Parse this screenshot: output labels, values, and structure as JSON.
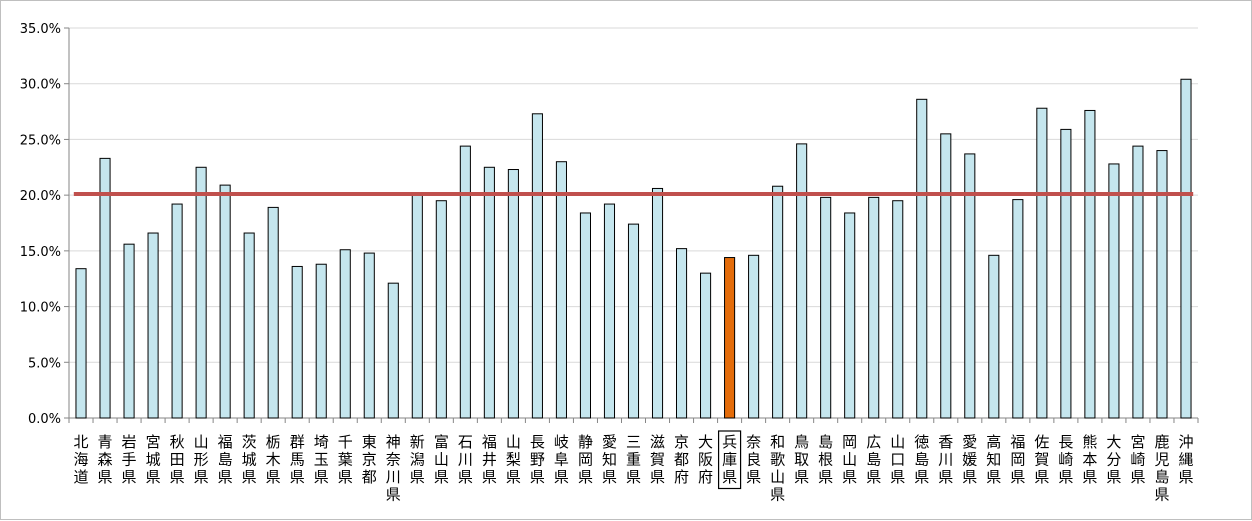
{
  "chart_data": {
    "type": "bar",
    "title": "",
    "xlabel": "",
    "ylabel": "",
    "ylim": [
      0,
      35
    ],
    "yticks": [
      "0.0%",
      "5.0%",
      "10.0%",
      "15.0%",
      "20.0%",
      "25.0%",
      "30.0%",
      "35.0%"
    ],
    "grid": true,
    "categories": [
      "北海道",
      "青森県",
      "岩手県",
      "宮城県",
      "秋田県",
      "山形県",
      "福島県",
      "茨城県",
      "栃木県",
      "群馬県",
      "埼玉県",
      "千葉県",
      "東京都",
      "神奈川県",
      "新潟県",
      "富山県",
      "石川県",
      "福井県",
      "山梨県",
      "長野県",
      "岐阜県",
      "静岡県",
      "愛知県",
      "三重県",
      "滋賀県",
      "京都府",
      "大阪府",
      "兵庫県",
      "奈良県",
      "和歌山県",
      "鳥取県",
      "島根県",
      "岡山県",
      "広島県",
      "山口県",
      "徳島県",
      "香川県",
      "愛媛県",
      "高知県",
      "福岡県",
      "佐賀県",
      "長崎県",
      "熊本県",
      "大分県",
      "宮崎県",
      "鹿児島県",
      "沖縄県"
    ],
    "values": [
      13.4,
      23.3,
      15.6,
      16.6,
      19.2,
      22.5,
      20.9,
      16.6,
      18.9,
      13.6,
      13.8,
      15.1,
      14.8,
      12.1,
      20.1,
      19.5,
      24.4,
      22.5,
      22.3,
      27.3,
      23.0,
      18.4,
      19.2,
      17.4,
      20.6,
      15.2,
      13.0,
      14.4,
      14.6,
      20.8,
      24.6,
      19.8,
      18.4,
      19.8,
      19.5,
      28.6,
      25.5,
      23.7,
      14.6,
      19.6,
      27.8,
      25.9,
      27.6,
      22.8,
      24.4,
      24.0,
      30.4
    ],
    "highlight_index": 27,
    "reference_line": 20.1,
    "colors": {
      "bar": "#c5e6ee",
      "bar_border": "#000000",
      "highlight": "#e46c0a",
      "reference_line": "#c0504d",
      "grid": "#d9d9d9",
      "axis": "#868686"
    }
  }
}
